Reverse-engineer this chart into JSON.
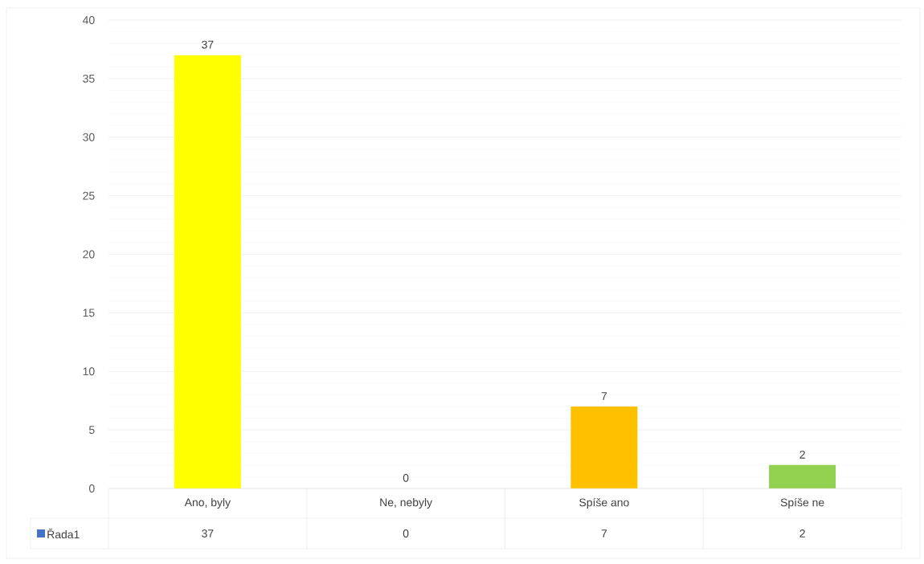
{
  "chart_data": {
    "type": "bar",
    "categories": [
      "Ano, byly",
      "Ne, nebyly",
      "Spíše ano",
      "Spíše ne"
    ],
    "series": [
      {
        "name": "Řada1",
        "color": "#4472c4",
        "colors": [
          "#ffff00",
          "#a5a5a5",
          "#ffc000",
          "#92d050"
        ],
        "values": [
          37,
          0,
          7,
          2
        ],
        "value_labels": [
          "37",
          "0",
          "7",
          "2"
        ]
      }
    ],
    "ylim": [
      0,
      40
    ],
    "yticks": [
      0,
      5,
      10,
      15,
      20,
      25,
      30,
      35,
      40
    ],
    "grid": "y",
    "legend": "bottom left",
    "data_labels": true
  }
}
